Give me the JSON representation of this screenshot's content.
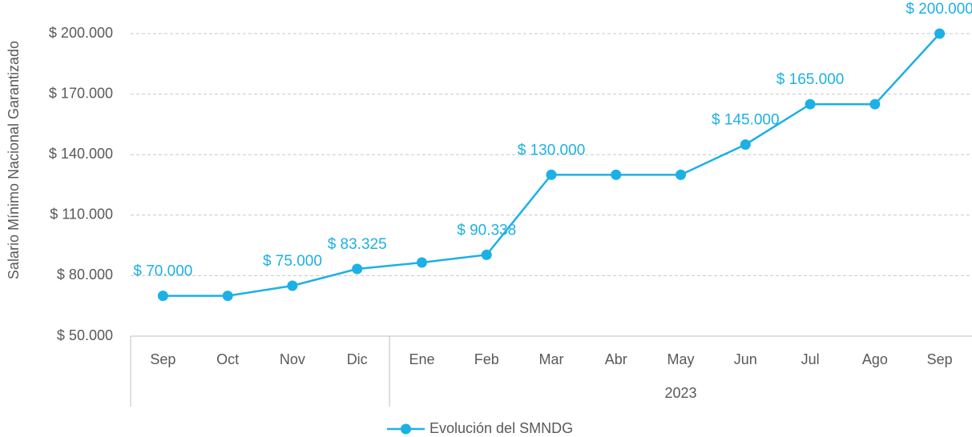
{
  "chart_data": {
    "type": "line",
    "y_label": "Salario Mínimo Nacional Garantizado",
    "categories": [
      "Sep",
      "Oct",
      "Nov",
      "Dic",
      "Ene",
      "Feb",
      "Mar",
      "Abr",
      "May",
      "Jun",
      "Jul",
      "Ago",
      "Sep"
    ],
    "category_groups": [
      {
        "label": null,
        "size": 4
      },
      {
        "label": "2023",
        "size": 9
      }
    ],
    "series": [
      {
        "name": "Evolución del SMNDG",
        "color": "#1cb0e6",
        "values": [
          70000,
          70000,
          75000,
          83325,
          86500,
          90338,
          130000,
          130000,
          130000,
          145000,
          165000,
          165000,
          200000
        ],
        "value_labels": [
          "$ 70.000",
          null,
          "$ 75.000",
          "$ 83.325",
          null,
          "$ 90.338",
          "$ 130.000",
          null,
          null,
          "$ 145.000",
          "$ 165.000",
          null,
          "$ 200.000"
        ]
      }
    ],
    "ylim": [
      50000,
      200000
    ],
    "yticks": [
      {
        "value": 50000,
        "label": "$ 50.000"
      },
      {
        "value": 80000,
        "label": "$ 80.000"
      },
      {
        "value": 110000,
        "label": "$ 110.000"
      },
      {
        "value": 140000,
        "label": "$ 140.000"
      },
      {
        "value": 170000,
        "label": "$ 170.000"
      },
      {
        "value": 200000,
        "label": "$ 200.000"
      }
    ],
    "grid": true,
    "legend": "bottom"
  }
}
